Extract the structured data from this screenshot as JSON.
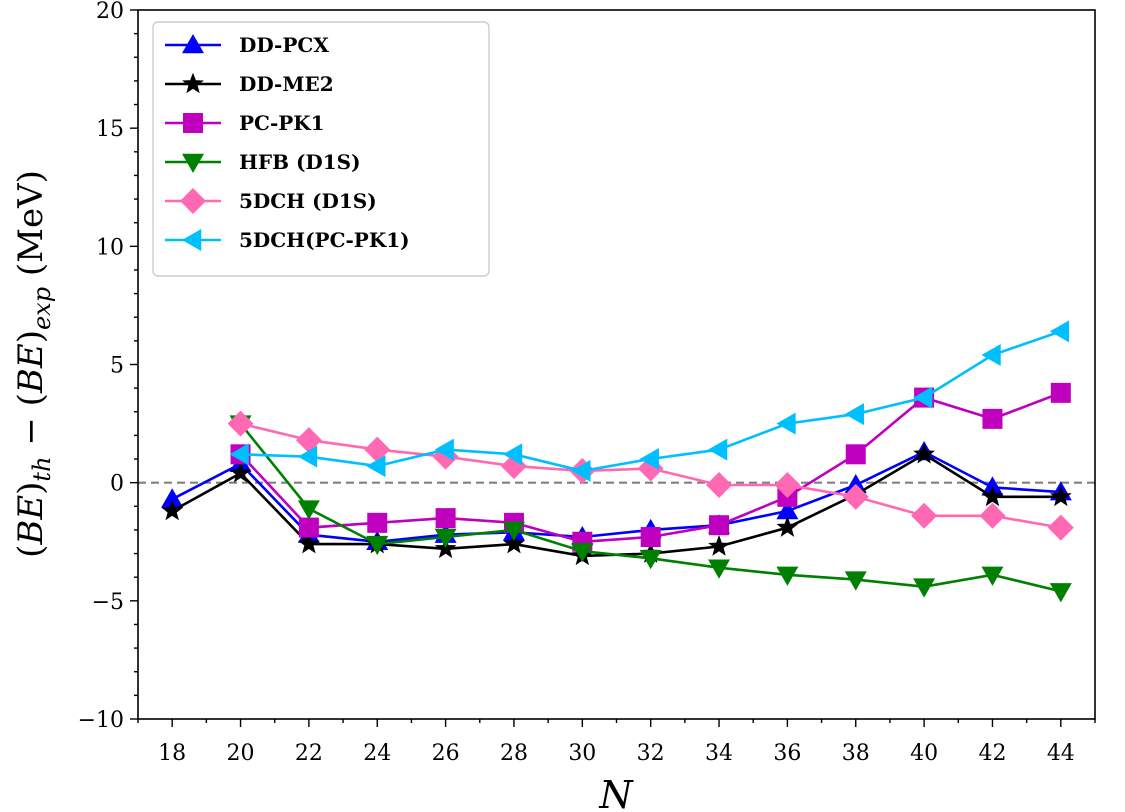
{
  "chart_data": {
    "type": "line",
    "xlabel": "N",
    "ylabel": "(BE)th − (BE)exp (MeV)",
    "ylabel_parts": {
      "open1": "(",
      "be1": "BE",
      "close1": ")",
      "sub1": "th",
      "minus": " − (",
      "be2": "BE",
      "close2": ")",
      "sub2": "exp",
      "unit": " (MeV)"
    },
    "xlim": [
      17,
      45
    ],
    "ylim": [
      -10,
      20
    ],
    "xticks": [
      18,
      20,
      22,
      24,
      26,
      28,
      30,
      32,
      34,
      36,
      38,
      40,
      42,
      44
    ],
    "xtick_labels": [
      "18",
      "20",
      "22",
      "24",
      "26",
      "28",
      "30",
      "32",
      "34",
      "36",
      "38",
      "40",
      "42",
      "44"
    ],
    "yticks": [
      -10,
      -5,
      0,
      5,
      10,
      15,
      20
    ],
    "ytick_labels": [
      "−10",
      "−5",
      "0",
      "5",
      "10",
      "15",
      "20"
    ],
    "grid": false,
    "reference_line": {
      "y": 0,
      "style": "dashed",
      "color": "#808080"
    },
    "legend_position": "top-left",
    "series": [
      {
        "name": "DD-PCX",
        "color": "#0000ff",
        "marker": "triangle-up",
        "x": [
          18,
          20,
          22,
          24,
          26,
          28,
          30,
          32,
          34,
          36,
          38,
          40,
          42,
          44
        ],
        "y": [
          -0.7,
          0.8,
          -2.2,
          -2.5,
          -2.2,
          -2.1,
          -2.3,
          -2.0,
          -1.8,
          -1.2,
          -0.1,
          1.3,
          -0.2,
          -0.4
        ]
      },
      {
        "name": "DD-ME2",
        "color": "#000000",
        "marker": "star",
        "x": [
          18,
          20,
          22,
          24,
          26,
          28,
          30,
          32,
          34,
          36,
          38,
          40,
          42,
          44
        ],
        "y": [
          -1.2,
          0.4,
          -2.6,
          -2.6,
          -2.8,
          -2.6,
          -3.1,
          -3.0,
          -2.7,
          -1.9,
          -0.5,
          1.2,
          -0.6,
          -0.6
        ]
      },
      {
        "name": "PC-PK1",
        "color": "#bf00bf",
        "marker": "square",
        "x": [
          20,
          22,
          24,
          26,
          28,
          30,
          32,
          34,
          36,
          38,
          40,
          42,
          44
        ],
        "y": [
          1.2,
          -1.9,
          -1.7,
          -1.5,
          -1.7,
          -2.5,
          -2.3,
          -1.8,
          -0.6,
          1.2,
          3.6,
          2.7,
          3.8
        ]
      },
      {
        "name": "HFB (D1S)",
        "color": "#008000",
        "marker": "triangle-down",
        "x": [
          20,
          22,
          24,
          26,
          28,
          30,
          32,
          34,
          36,
          38,
          40,
          42,
          44
        ],
        "y": [
          2.5,
          -1.1,
          -2.6,
          -2.3,
          -2.0,
          -2.9,
          -3.2,
          -3.6,
          -3.9,
          -4.1,
          -4.4,
          -3.9,
          -4.6
        ]
      },
      {
        "name": "5DCH (D1S)",
        "color": "#ff69b4",
        "marker": "diamond",
        "x": [
          20,
          22,
          24,
          26,
          28,
          30,
          32,
          34,
          36,
          38,
          40,
          42,
          44
        ],
        "y": [
          2.5,
          1.8,
          1.4,
          1.1,
          0.7,
          0.5,
          0.6,
          -0.1,
          -0.1,
          -0.6,
          -1.4,
          -1.4,
          -1.9
        ]
      },
      {
        "name": "5DCH(PC-PK1)",
        "color": "#00bfff",
        "marker": "triangle-left",
        "x": [
          20,
          22,
          24,
          26,
          28,
          30,
          32,
          34,
          36,
          38,
          40,
          42,
          44
        ],
        "y": [
          1.2,
          1.1,
          0.7,
          1.4,
          1.2,
          0.5,
          1.0,
          1.4,
          2.5,
          2.9,
          3.6,
          5.4,
          6.4
        ]
      }
    ]
  }
}
